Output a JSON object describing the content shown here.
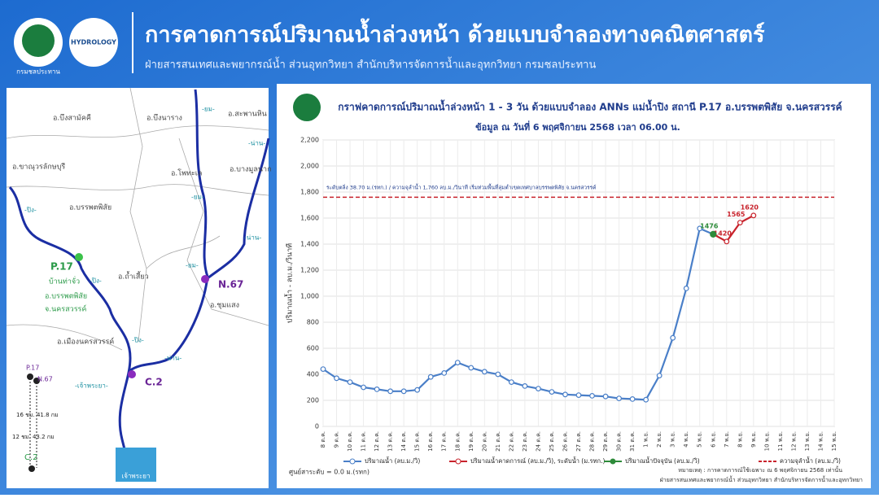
{
  "header": {
    "title": "การคาดการณ์ปริมาณน้ำล่วงหน้า ด้วยแบบจำลองทางคณิตศาสตร์",
    "subtitle": "ฝ่ายสารสนเทศและพยากรณ์น้ำ ส่วนอุทกวิทยา สำนักบริหารจัดการน้ำและอุทกวิทยา กรมชลประทาน",
    "logo_text": "กรมชลประทาน",
    "logo2_text": "HYDROLOGY"
  },
  "map": {
    "labels": [
      "อ.บึงสามัคคี",
      "อ.บึงนาราง",
      "อ.สะพานหิน",
      "อ.ขาณุวรลักษบุรี",
      "อ.โพทะเล",
      "อ.บางมูลนาก",
      "อ.บรรพตพิสัย",
      "อ.ถ้ำเสี้ยว",
      "อ.ชุมแสง",
      "อ.เมืองนครสวรรค์"
    ],
    "rivers": [
      "-ยม-",
      "-น่าน-",
      "-ยม-",
      "-ปิง-",
      "-ปิง-",
      "-ยม-",
      "-น่าน-",
      "-ปิง-",
      "-น่าน-",
      "-เจ้าพระยา-"
    ],
    "stations": [
      "P.17",
      "N.67",
      "C.2"
    ],
    "station_note": [
      "บ้านท่าจั่ว",
      "อ.บรรพตพิสัย",
      "จ.นครสวรรค์"
    ],
    "legend": [
      "P.17",
      "N.67",
      "16 ชม. 41.8 กม",
      "12 ชม. 43.2 กม",
      "C.2"
    ],
    "dam": "เจ้าพระยา"
  },
  "chart_data": {
    "type": "line",
    "title": "กราฟคาดการณ์ปริมาณน้ำล่วงหน้า 1 - 3 วัน  ด้วยแบบจำลอง ANNs แม่น้ำปิง สถานี P.17 อ.บรรพตพิสัย จ.นครสวรรค์",
    "subtitle": "ข้อมูล ณ วันที่    6 พฤศจิกายน 2568    เวลา 06.00 น.",
    "y_label": "ปริมาณน้ำ - ลบ.ม./วินาที",
    "categories": [
      "8 ต.ค.",
      "9 ต.ค.",
      "10 ต.ค.",
      "11 ต.ค.",
      "12 ต.ค.",
      "13 ต.ค.",
      "14 ต.ค.",
      "15 ต.ค.",
      "16 ต.ค.",
      "17 ต.ค.",
      "18 ต.ค.",
      "19 ต.ค.",
      "20 ต.ค.",
      "21 ต.ค.",
      "22 ต.ค.",
      "23 ต.ค.",
      "24 ต.ค.",
      "25 ต.ค.",
      "26 ต.ค.",
      "27 ต.ค.",
      "28 ต.ค.",
      "29 ต.ค.",
      "30 ต.ค.",
      "31 ต.ค.",
      "1 พ.ย.",
      "2 พ.ย.",
      "3 พ.ย.",
      "4 พ.ย.",
      "5 พ.ย.",
      "6 พ.ย.",
      "7 พ.ย.",
      "8 พ.ย.",
      "9 พ.ย.",
      "10 พ.ย.",
      "11 พ.ย.",
      "12 พ.ย.",
      "13 พ.ย.",
      "14 พ.ย.",
      "15 พ.ย."
    ],
    "series": [
      {
        "name": "ปริมาณน้ำ (ลบ.ม./วิ)",
        "color": "#4a7fc8",
        "values": [
          440,
          370,
          340,
          300,
          285,
          270,
          270,
          280,
          380,
          410,
          490,
          450,
          420,
          400,
          340,
          310,
          290,
          265,
          245,
          240,
          235,
          230,
          215,
          210,
          205,
          390,
          680,
          1060,
          1520,
          1476,
          null,
          null,
          null,
          null,
          null,
          null,
          null,
          null,
          null
        ]
      },
      {
        "name": "ปริมาณน้ำคาดการณ์ (ลบ.ม./วิ), ระดับน้ำ (ม.รทก.)",
        "color": "#c8232c",
        "show_labels": true,
        "values": [
          null,
          null,
          null,
          null,
          null,
          null,
          null,
          null,
          null,
          null,
          null,
          null,
          null,
          null,
          null,
          null,
          null,
          null,
          null,
          null,
          null,
          null,
          null,
          null,
          null,
          null,
          null,
          null,
          null,
          1476,
          1420,
          1565,
          1620,
          null,
          null,
          null,
          null,
          null,
          null
        ]
      },
      {
        "name": "ปริมาณน้ำปัจจุบัน (ลบ.ม./วิ)",
        "color": "#2e8b3a",
        "show_labels": true,
        "values": [
          null,
          null,
          null,
          null,
          null,
          null,
          null,
          null,
          null,
          null,
          null,
          null,
          null,
          null,
          null,
          null,
          null,
          null,
          null,
          null,
          null,
          null,
          null,
          null,
          null,
          null,
          null,
          null,
          null,
          1476,
          null,
          null,
          null,
          null,
          null,
          null,
          null,
          null,
          null
        ]
      }
    ],
    "capacity": {
      "name": "ความจุลำน้ำ (ลบ.ม./วิ)",
      "value": 1760,
      "color": "#c8232c",
      "annotation": "ระดับตลิ่ง 38.70 ม.(รทก.) / ความจุลำน้ำ 1,760 ลบ.ม./วินาที   เริ่มท่วมพื้นที่ลุ่มต่ำเขตเทศบาลบรรพตพิสัย  จ.นครสวรรค์"
    },
    "ylim": [
      0,
      2200
    ],
    "yticks": [
      0,
      200,
      400,
      600,
      800,
      {
        "value": 1000,
        "label": "1,000"
      },
      {
        "value": 1200,
        "label": "1,200"
      },
      {
        "value": 1400,
        "label": "1,400"
      },
      {
        "value": 1600,
        "label": "1,600"
      },
      {
        "value": 1800,
        "label": "1,800"
      },
      {
        "value": 2000,
        "label": "2,000"
      },
      {
        "value": 2200,
        "label": "2,200"
      }
    ],
    "grid": true,
    "notes": [
      "ศูนย์สาระดับ = 0.0 ม.(รทก)",
      "หมายเหตุ : การคาดการณ์ใช้เฉพาะ ณ 6 พฤศจิกายน 2568  เท่านั้น",
      "ฝ่ายสารสนเทศและพยากรณ์น้ำ ส่วนอุทกวิทยา  สำนักบริหารจัดการน้ำและอุทกวิทยา"
    ]
  }
}
